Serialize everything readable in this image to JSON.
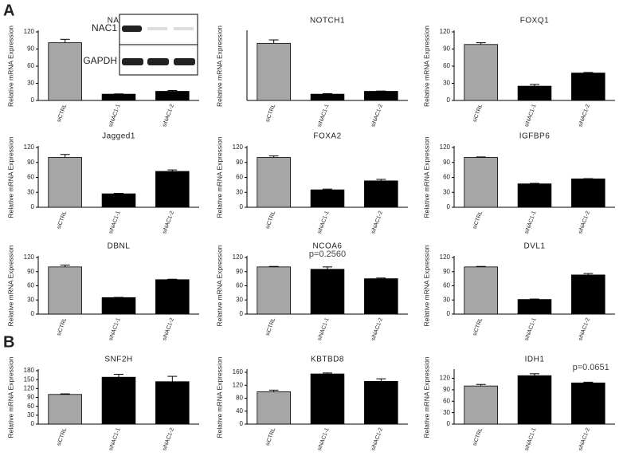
{
  "panel_labels": [
    "A",
    "B"
  ],
  "chart_data": [
    {
      "type": "bar",
      "title": "NAC1",
      "ylabel": "Relative mRNA Expression",
      "categories": [
        "siCTRL",
        "siNAC1-1",
        "siNAC1-2"
      ],
      "values": [
        101,
        11,
        16
      ],
      "errors": [
        6,
        0.5,
        1.5
      ],
      "colors": [
        "#a6a6a6",
        "#000000",
        "#000000"
      ],
      "ylim": [
        0,
        120
      ],
      "yticks": [
        0,
        30,
        60,
        90,
        120
      ],
      "inset_labels": [
        "NAC1",
        "GAPDH"
      ]
    },
    {
      "type": "bar",
      "title": "NOTCH1",
      "ylabel": "Relative mRNA Expression",
      "categories": [
        "siCTRL",
        "siNAC1-1",
        "siNAC1-2"
      ],
      "values": [
        100,
        11,
        16
      ],
      "errors": [
        6,
        1,
        0.5
      ],
      "colors": [
        "#a6a6a6",
        "#000000",
        "#000000"
      ],
      "ylim": [
        0,
        120
      ]
    },
    {
      "type": "bar",
      "title": "FOXQ1",
      "ylabel": "Relative mRNA Expression",
      "categories": [
        "siCTRL",
        "siNAC1-1",
        "siNAC1-2"
      ],
      "values": [
        98,
        25,
        48
      ],
      "errors": [
        3,
        3,
        1
      ],
      "colors": [
        "#a6a6a6",
        "#000000",
        "#000000"
      ],
      "ylim": [
        0,
        120
      ],
      "yticks": [
        0,
        30,
        60,
        90,
        120
      ]
    },
    {
      "type": "bar",
      "title": "Jagged1",
      "ylabel": "Relative mRNA Expression",
      "categories": [
        "siCTRL",
        "siNAC1-1",
        "siNAC1-2"
      ],
      "values": [
        100,
        27,
        72
      ],
      "errors": [
        6,
        1,
        3
      ],
      "colors": [
        "#a6a6a6",
        "#000000",
        "#000000"
      ],
      "ylim": [
        0,
        120
      ],
      "yticks": [
        0,
        30,
        60,
        90,
        120
      ]
    },
    {
      "type": "bar",
      "title": "FOXA2",
      "ylabel": "Relative mRNA Expression",
      "categories": [
        "siCTRL",
        "siNAC1-1",
        "siNAC1-2"
      ],
      "values": [
        100,
        35,
        53
      ],
      "errors": [
        3,
        1.5,
        3
      ],
      "colors": [
        "#a6a6a6",
        "#000000",
        "#000000"
      ],
      "ylim": [
        0,
        120
      ],
      "yticks": [
        0,
        30,
        60,
        90,
        120
      ]
    },
    {
      "type": "bar",
      "title": "IGFBP6",
      "ylabel": "Relative mRNA Expression",
      "categories": [
        "siCTRL",
        "siNAC1-1",
        "siNAC1-2"
      ],
      "values": [
        100,
        47,
        57
      ],
      "errors": [
        1,
        1,
        0.5
      ],
      "colors": [
        "#a6a6a6",
        "#000000",
        "#000000"
      ],
      "ylim": [
        0,
        120
      ],
      "yticks": [
        0,
        30,
        60,
        90,
        120
      ]
    },
    {
      "type": "bar",
      "title": "DBNL",
      "ylabel": "Relative mRNA Expression",
      "categories": [
        "siCTRL",
        "siNAC1-1",
        "siNAC1-2"
      ],
      "values": [
        100,
        35,
        73
      ],
      "errors": [
        4,
        0.5,
        1
      ],
      "colors": [
        "#a6a6a6",
        "#000000",
        "#000000"
      ],
      "ylim": [
        0,
        120
      ],
      "yticks": [
        0,
        30,
        60,
        90,
        120
      ]
    },
    {
      "type": "bar",
      "title": "NCOA6",
      "ylabel": "Relative mRNA Expression",
      "categories": [
        "siCTRL",
        "siNAC1-1",
        "siNAC1-2"
      ],
      "values": [
        100,
        95,
        75
      ],
      "errors": [
        1,
        5,
        1.5
      ],
      "colors": [
        "#a6a6a6",
        "#000000",
        "#000000"
      ],
      "ylim": [
        0,
        120
      ],
      "yticks": [
        0,
        30,
        60,
        90,
        120
      ],
      "annotation": "p=0.2560"
    },
    {
      "type": "bar",
      "title": "DVL1",
      "ylabel": "Relative mRNA Expression",
      "categories": [
        "siCTRL",
        "siNAC1-1",
        "siNAC1-2"
      ],
      "values": [
        100,
        31,
        83
      ],
      "errors": [
        1,
        1,
        3
      ],
      "colors": [
        "#a6a6a6",
        "#000000",
        "#000000"
      ],
      "ylim": [
        0,
        120
      ],
      "yticks": [
        0,
        30,
        60,
        90,
        120
      ]
    },
    {
      "type": "bar",
      "title": "SNF2H",
      "ylabel": "Relative mRNA Expression",
      "categories": [
        "siCTRL",
        "siNAC1-1",
        "siNAC1-2"
      ],
      "values": [
        100,
        158,
        143
      ],
      "errors": [
        2,
        10,
        18
      ],
      "colors": [
        "#a6a6a6",
        "#000000",
        "#000000"
      ],
      "ylim": [
        0,
        180
      ],
      "yticks": [
        0,
        30,
        60,
        90,
        120,
        150,
        180
      ]
    },
    {
      "type": "bar",
      "title": "KBTBD8",
      "ylabel": "Relative mRNA Expression",
      "categories": [
        "siCTRL",
        "siNAC1-1",
        "siNAC1-2"
      ],
      "values": [
        100,
        155,
        132
      ],
      "errors": [
        5,
        3,
        8
      ],
      "colors": [
        "#a6a6a6",
        "#000000",
        "#000000"
      ],
      "ylim": [
        0,
        165
      ],
      "yticks": [
        0,
        40,
        80,
        120,
        160
      ]
    },
    {
      "type": "bar",
      "title": "IDH1",
      "ylabel": "Relative mRNA Expression",
      "categories": [
        "siCTRL",
        "siNAC1-1",
        "siNAC1-2"
      ],
      "values": [
        100,
        127,
        108
      ],
      "errors": [
        4,
        5,
        2
      ],
      "colors": [
        "#a6a6a6",
        "#000000",
        "#000000"
      ],
      "ylim": [
        0,
        140
      ],
      "yticks": [
        0,
        30,
        60,
        90,
        120
      ],
      "annotation": "p=0.0651"
    }
  ]
}
